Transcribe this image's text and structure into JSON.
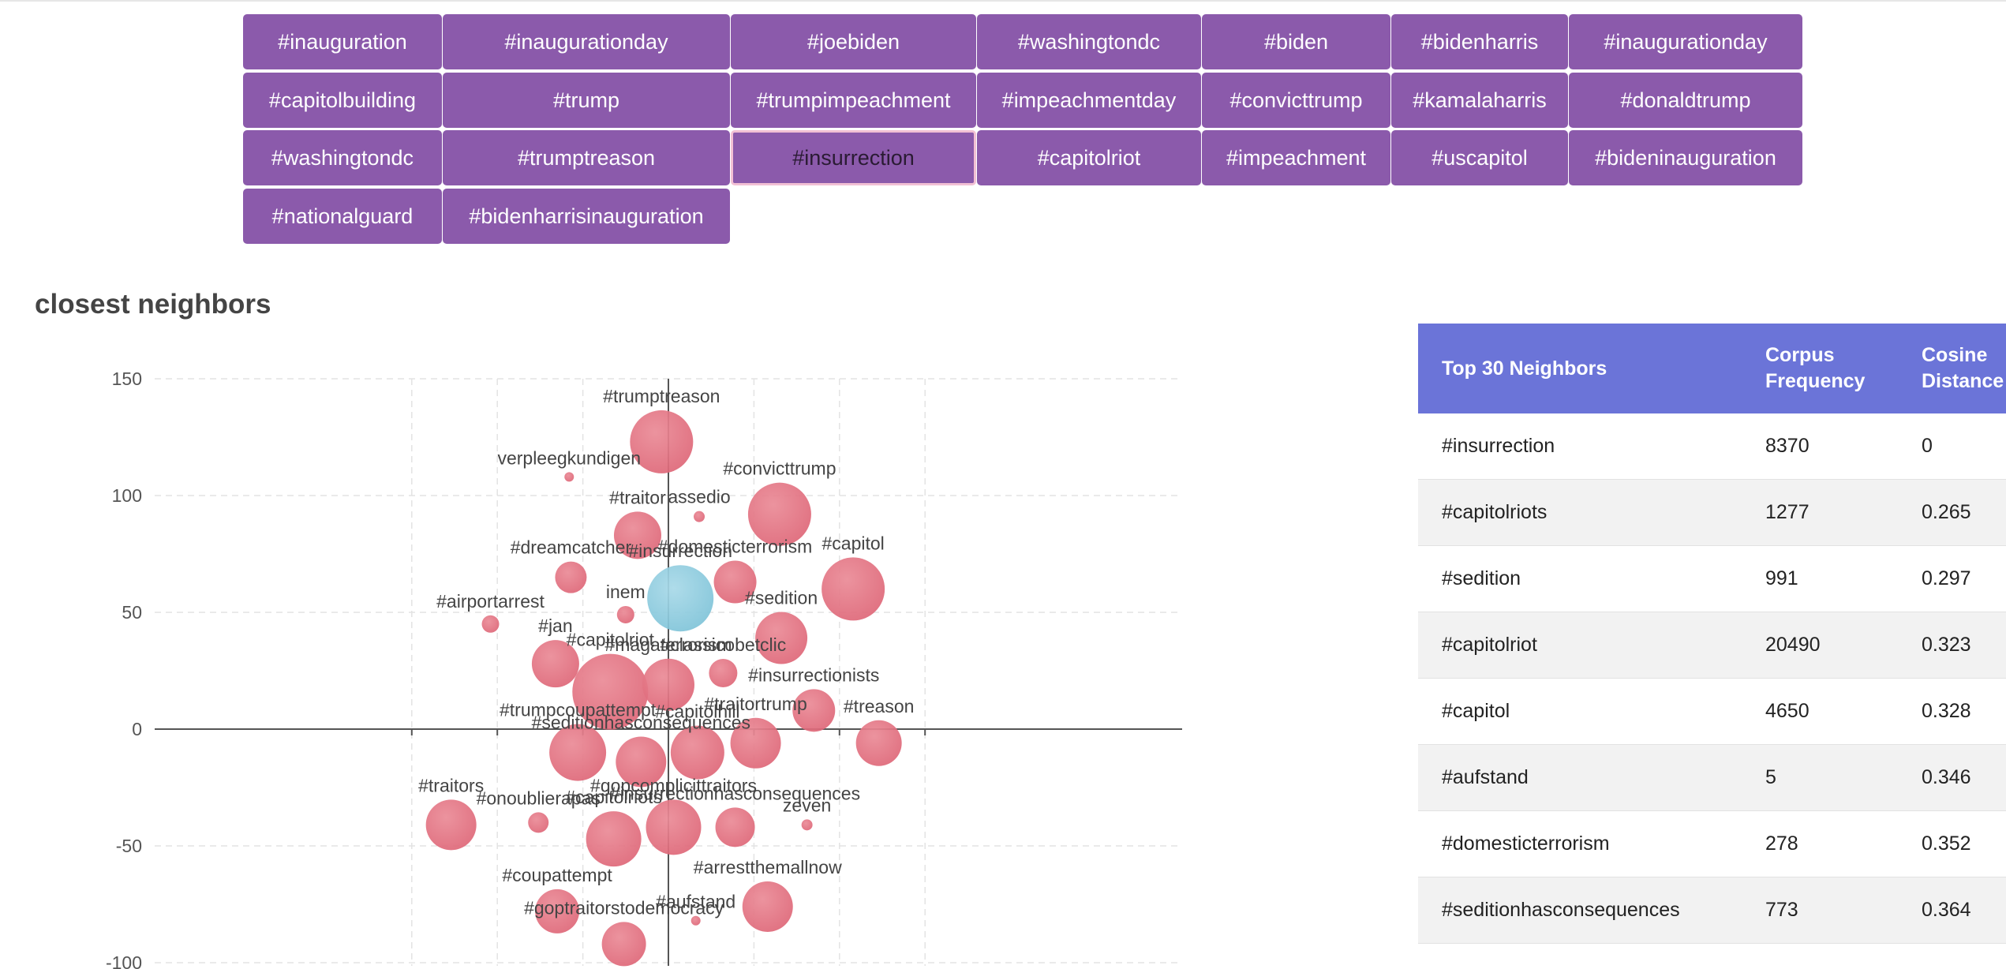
{
  "tags": [
    [
      "#inauguration",
      "#inaugurationday",
      "#joebiden",
      "#washingtondc",
      "#biden",
      "#bidenharris",
      "#inaugurationday"
    ],
    [
      "#capitolbuilding",
      "#trump",
      "#trumpimpeachment",
      "#impeachmentday",
      "#convicttrump",
      "#kamalaharris",
      "#donaldtrump"
    ],
    [
      "#washingtondc",
      "#trumptreason",
      "#insurrection",
      "#capitolriot",
      "#impeachment",
      "#uscapitol",
      "#bideninauguration"
    ],
    [
      "#nationalguard",
      "#bidenharrisinauguration"
    ]
  ],
  "selected_tag": "#insurrection",
  "section_title": "closest neighbors",
  "colors": {
    "tag_bg": "#8b5aab",
    "bubble": "#de6677",
    "bubble_selected": "#7ec3d8",
    "table_header": "#6b74d8"
  },
  "chart_data": {
    "type": "scatter",
    "title": "",
    "xlabel": "",
    "ylabel": "",
    "y_ticks": [
      150,
      100,
      50,
      0,
      -50,
      -100
    ],
    "ylim": [
      -100,
      150
    ],
    "xlim": [
      -150,
      150
    ],
    "grid": true,
    "points": [
      {
        "label": "#trumptreason",
        "x": -4,
        "y": 123,
        "size": 40
      },
      {
        "label": "verpleegkundigen",
        "x": -58,
        "y": 108,
        "size": 6
      },
      {
        "label": "assedio",
        "x": 18,
        "y": 91,
        "size": 7
      },
      {
        "label": "#convicttrump",
        "x": 65,
        "y": 92,
        "size": 40
      },
      {
        "label": "#traitor",
        "x": -18,
        "y": 83,
        "size": 30
      },
      {
        "label": "#dreamcatcher",
        "x": -57,
        "y": 65,
        "size": 20
      },
      {
        "label": "#insurrection",
        "x": 7,
        "y": 56,
        "size": 42,
        "selected": true
      },
      {
        "label": "#domesticterrorism",
        "x": 39,
        "y": 63,
        "size": 27
      },
      {
        "label": "#capitol",
        "x": 108,
        "y": 60,
        "size": 40
      },
      {
        "label": "inem",
        "x": -25,
        "y": 49,
        "size": 11
      },
      {
        "label": "#airportarrest",
        "x": -104,
        "y": 45,
        "size": 11
      },
      {
        "label": "#sedition",
        "x": 66,
        "y": 39,
        "size": 33
      },
      {
        "label": "#jan",
        "x": -66,
        "y": 28,
        "size": 30
      },
      {
        "label": "#capitolriot",
        "x": -34,
        "y": 16,
        "size": 48
      },
      {
        "label": "#magaterrorism",
        "x": 0,
        "y": 19,
        "size": 33
      },
      {
        "label": "#classicobetclic",
        "x": 32,
        "y": 24,
        "size": 18
      },
      {
        "label": "#insurrectionists",
        "x": 85,
        "y": 8,
        "size": 27
      },
      {
        "label": "#trumpcoupattempt",
        "x": -53,
        "y": -10,
        "size": 36
      },
      {
        "label": "#seditionhasconsequences",
        "x": -16,
        "y": -14,
        "size": 32
      },
      {
        "label": "#capitolhill",
        "x": 17,
        "y": -10,
        "size": 34
      },
      {
        "label": "#traitortrump",
        "x": 51,
        "y": -6,
        "size": 32
      },
      {
        "label": "#treason",
        "x": 123,
        "y": -6,
        "size": 29
      },
      {
        "label": "#traitors",
        "x": -127,
        "y": -41,
        "size": 32
      },
      {
        "label": "#onoublierapas",
        "x": -76,
        "y": -40,
        "size": 13
      },
      {
        "label": "#capitolriots",
        "x": -32,
        "y": -47,
        "size": 35
      },
      {
        "label": "#gopcomplicittraitors",
        "x": 3,
        "y": -42,
        "size": 35
      },
      {
        "label": "#insurrectionhasconsequences",
        "x": 39,
        "y": -42,
        "size": 25
      },
      {
        "label": "zeven",
        "x": 81,
        "y": -41,
        "size": 7
      },
      {
        "label": "#coupattempt",
        "x": -65,
        "y": -78,
        "size": 28
      },
      {
        "label": "#arrestthemallnow",
        "x": 58,
        "y": -76,
        "size": 32
      },
      {
        "label": "#aufstand",
        "x": 16,
        "y": -82,
        "size": 6
      },
      {
        "label": "#goptraitorstodemocracy",
        "x": -26,
        "y": -92,
        "size": 28
      }
    ]
  },
  "table": {
    "headers": [
      "Top 30 Neighbors",
      "Corpus Frequency",
      "Cosine Distance"
    ],
    "rows": [
      [
        "#insurrection",
        "8370",
        "0"
      ],
      [
        "#capitolriots",
        "1277",
        "0.265"
      ],
      [
        "#sedition",
        "991",
        "0.297"
      ],
      [
        "#capitolriot",
        "20490",
        "0.323"
      ],
      [
        "#capitol",
        "4650",
        "0.328"
      ],
      [
        "#aufstand",
        "5",
        "0.346"
      ],
      [
        "#domesticterrorism",
        "278",
        "0.352"
      ],
      [
        "#seditionhasconsequences",
        "773",
        "0.364"
      ]
    ]
  }
}
